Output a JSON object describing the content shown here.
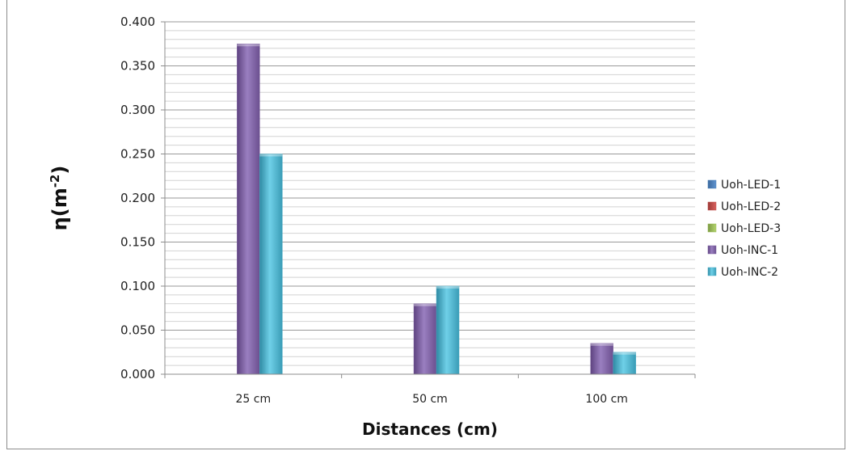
{
  "chart_data": {
    "type": "bar",
    "title": "",
    "xlabel": "Distances (cm)",
    "ylabel_main": "η(m",
    "ylabel_sup": "-2",
    "ylabel_close": ")",
    "categories": [
      "25 cm",
      "50 cm",
      "100 cm"
    ],
    "series": [
      {
        "name": "Uoh-LED-1",
        "color": "#4f81bd",
        "values": [
          0,
          0,
          0
        ]
      },
      {
        "name": "Uoh-LED-2",
        "color": "#c0504d",
        "values": [
          0,
          0,
          0
        ]
      },
      {
        "name": "Uoh-LED-3",
        "color": "#9bbb59",
        "values": [
          0,
          0,
          0
        ]
      },
      {
        "name": "Uoh-INC-1",
        "color": "#8064a2",
        "values": [
          0.375,
          0.08,
          0.035
        ]
      },
      {
        "name": "Uoh-INC-2",
        "color": "#4bacc6",
        "values": [
          0.25,
          0.1,
          0.025
        ]
      }
    ],
    "ylim": [
      0,
      0.4
    ],
    "yticks": [
      "0.000",
      "0.050",
      "0.100",
      "0.150",
      "0.200",
      "0.250",
      "0.300",
      "0.350",
      "0.400"
    ],
    "grid": true,
    "legend_position": "right"
  }
}
